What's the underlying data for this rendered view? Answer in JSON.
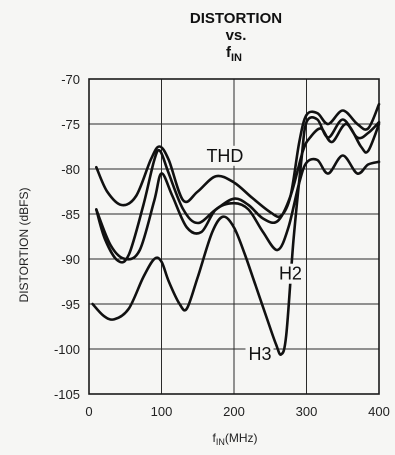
{
  "chart_data": {
    "type": "line",
    "title": [
      "DISTORTION",
      "vs.",
      "f",
      "IN"
    ],
    "xlabel": [
      "f",
      "IN",
      "(MHz)"
    ],
    "ylabel": "DISTORTION (dBFS)",
    "xlim": [
      0,
      400
    ],
    "ylim": [
      -105,
      -70
    ],
    "xticks": [
      0,
      100,
      200,
      300,
      400
    ],
    "yticks": [
      -70,
      -75,
      -80,
      -85,
      -90,
      -95,
      -100,
      -105
    ],
    "xtick_labels": [
      "0",
      "100",
      "200",
      "300",
      "400"
    ],
    "ytick_labels": [
      "-70",
      "-75",
      "-80",
      "-85",
      "-90",
      "-95",
      "-100",
      "-105"
    ],
    "grid": true,
    "series": [
      {
        "name": "THD",
        "values": [
          [
            10,
            -79.8
          ],
          [
            25,
            -82.5
          ],
          [
            45,
            -84.0
          ],
          [
            65,
            -83.0
          ],
          [
            85,
            -79.0
          ],
          [
            97,
            -77.5
          ],
          [
            110,
            -79.0
          ],
          [
            130,
            -83.5
          ],
          [
            150,
            -82.5
          ],
          [
            175,
            -80.8
          ],
          [
            200,
            -81.5
          ],
          [
            225,
            -83.2
          ],
          [
            250,
            -84.8
          ],
          [
            265,
            -85.2
          ],
          [
            278,
            -83.0
          ],
          [
            290,
            -77.0
          ],
          [
            300,
            -74.0
          ],
          [
            315,
            -73.8
          ],
          [
            330,
            -75.0
          ],
          [
            350,
            -73.5
          ],
          [
            370,
            -75.0
          ],
          [
            385,
            -75.5
          ],
          [
            400,
            -72.8
          ]
        ]
      },
      {
        "name": "",
        "values": [
          [
            10,
            -84.5
          ],
          [
            22,
            -87.8
          ],
          [
            40,
            -90.2
          ],
          [
            55,
            -89.5
          ],
          [
            75,
            -84.0
          ],
          [
            90,
            -79.0
          ],
          [
            98,
            -78.0
          ],
          [
            110,
            -80.5
          ],
          [
            130,
            -84.5
          ],
          [
            150,
            -86.0
          ],
          [
            175,
            -84.5
          ],
          [
            200,
            -83.3
          ],
          [
            220,
            -84.0
          ],
          [
            240,
            -85.5
          ],
          [
            260,
            -85.8
          ],
          [
            278,
            -83.0
          ],
          [
            295,
            -78.0
          ],
          [
            305,
            -76.5
          ],
          [
            320,
            -75.5
          ],
          [
            335,
            -77.0
          ],
          [
            355,
            -75.0
          ],
          [
            375,
            -77.5
          ],
          [
            385,
            -78.0
          ],
          [
            400,
            -75.0
          ]
        ]
      },
      {
        "name": "H2",
        "values": [
          [
            10,
            -84.5
          ],
          [
            30,
            -88.5
          ],
          [
            50,
            -90.0
          ],
          [
            70,
            -89.0
          ],
          [
            90,
            -83.5
          ],
          [
            100,
            -80.5
          ],
          [
            115,
            -83.0
          ],
          [
            135,
            -86.5
          ],
          [
            155,
            -87.0
          ],
          [
            175,
            -84.5
          ],
          [
            200,
            -83.8
          ],
          [
            220,
            -84.5
          ],
          [
            240,
            -87.0
          ],
          [
            260,
            -89.0
          ],
          [
            275,
            -86.5
          ],
          [
            290,
            -81.5
          ],
          [
            300,
            -79.3
          ],
          [
            315,
            -79.0
          ],
          [
            330,
            -80.5
          ],
          [
            350,
            -78.5
          ],
          [
            370,
            -80.5
          ],
          [
            385,
            -79.5
          ],
          [
            400,
            -79.2
          ]
        ]
      },
      {
        "name": "H3",
        "values": [
          [
            5,
            -95.0
          ],
          [
            20,
            -96.3
          ],
          [
            35,
            -96.7
          ],
          [
            55,
            -95.5
          ],
          [
            75,
            -92.0
          ],
          [
            90,
            -90.0
          ],
          [
            100,
            -90.3
          ],
          [
            110,
            -92.5
          ],
          [
            125,
            -95.0
          ],
          [
            135,
            -95.5
          ],
          [
            150,
            -92.0
          ],
          [
            170,
            -87.0
          ],
          [
            185,
            -85.3
          ],
          [
            200,
            -86.5
          ],
          [
            215,
            -89.5
          ],
          [
            230,
            -93.0
          ],
          [
            245,
            -96.5
          ],
          [
            258,
            -99.5
          ],
          [
            265,
            -100.6
          ],
          [
            272,
            -98.5
          ],
          [
            282,
            -88.0
          ],
          [
            293,
            -79.0
          ],
          [
            300,
            -74.8
          ],
          [
            315,
            -74.5
          ],
          [
            330,
            -76.5
          ],
          [
            350,
            -74.5
          ],
          [
            370,
            -76.5
          ],
          [
            385,
            -76.0
          ],
          [
            400,
            -74.8
          ]
        ]
      }
    ],
    "annotations": [
      {
        "text": "THD",
        "x": 162,
        "y": -79.2
      },
      {
        "text": "H2",
        "x": 262,
        "y": -92.3
      },
      {
        "text": "H3",
        "x": 220,
        "y": -101.2
      }
    ]
  }
}
